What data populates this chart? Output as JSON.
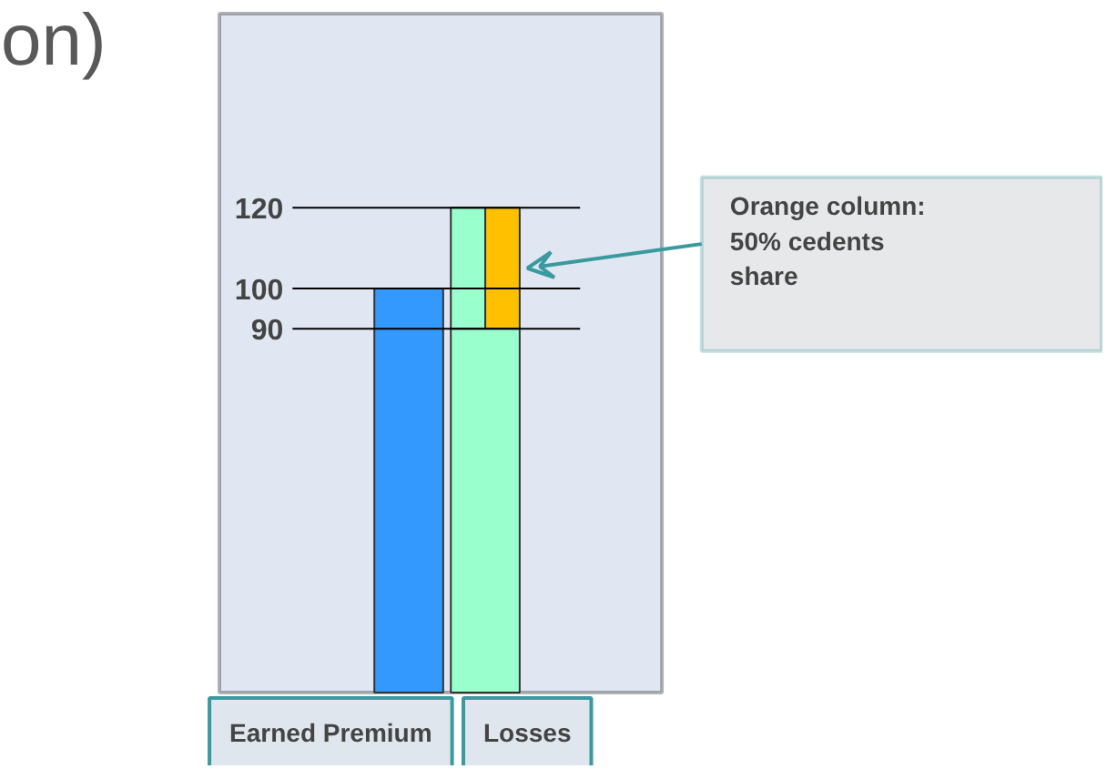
{
  "chart_data": {
    "type": "bar",
    "title": "on)",
    "categories": [
      "Earned Premium",
      "Losses"
    ],
    "ylim": [
      0,
      168
    ],
    "yticks": [
      90,
      100,
      120
    ],
    "grid": false,
    "series": [
      {
        "color": "#3399ff",
        "values": [
          100,
          null
        ]
      },
      {
        "color": "#99ffcc",
        "values": [
          null,
          30
        ],
        "base": [
          null,
          90
        ]
      },
      {
        "color": "#ffc000",
        "values": [
          null,
          30
        ],
        "base": [
          null,
          90
        ]
      },
      {
        "color": "#99ffcc",
        "values": [
          null,
          90
        ]
      }
    ],
    "ref_lines": [
      {
        "axis": "y",
        "value": 120
      },
      {
        "axis": "y",
        "value": 100
      },
      {
        "axis": "y",
        "value": 90
      }
    ],
    "annotations": [
      {
        "text": "Orange column:\n 50% cedents\nshare",
        "x": "Losses",
        "y": 105
      }
    ]
  }
}
